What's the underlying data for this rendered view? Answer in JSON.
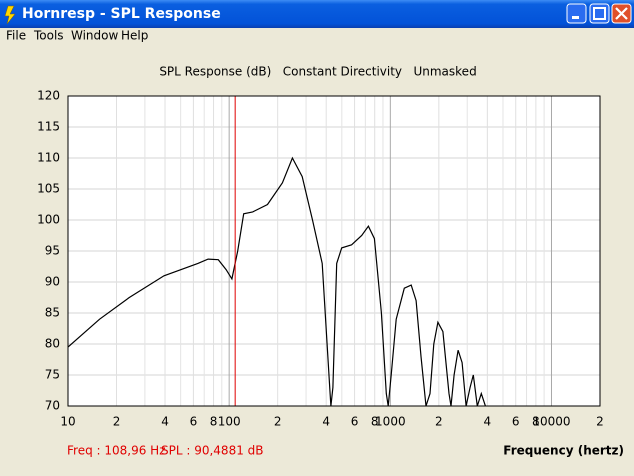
{
  "window": {
    "title": "Hornresp - SPL Response"
  },
  "menu": [
    "File",
    "Tools",
    "Window",
    "Help"
  ],
  "chart_data": {
    "type": "line",
    "title": "SPL Response (dB)   Constant Directivity   Unmasked",
    "x_label": "Frequency (hertz)",
    "log_x": true,
    "grid": true,
    "xlim": [
      10,
      20000
    ],
    "ylim": [
      70,
      120
    ],
    "xticks": [
      10,
      {
        "value": 20,
        "label": "2"
      },
      {
        "value": 40,
        "label": "4"
      },
      {
        "value": 60,
        "label": "6"
      },
      {
        "value": 80,
        "label": "8"
      },
      100,
      {
        "value": 200,
        "label": "2"
      },
      {
        "value": 400,
        "label": "4"
      },
      {
        "value": 600,
        "label": "6"
      },
      {
        "value": 800,
        "label": "8"
      },
      1000,
      {
        "value": 2000,
        "label": "2"
      },
      {
        "value": 4000,
        "label": "4"
      },
      {
        "value": 6000,
        "label": "6"
      },
      {
        "value": 8000,
        "label": "8"
      },
      10000,
      {
        "value": 20000,
        "label": "2"
      }
    ],
    "x_minor_grid": [
      30,
      50,
      70,
      90,
      300,
      500,
      700,
      900,
      3000,
      5000,
      7000,
      9000
    ],
    "yticks": [
      70,
      75,
      80,
      85,
      90,
      95,
      100,
      105,
      110,
      115,
      120
    ],
    "series": [
      {
        "color": "#000000",
        "x": [
          10,
          15.7,
          24,
          39.4,
          64,
          74,
          85.6,
          95.7,
          104,
          113,
          123,
          140,
          173,
          214,
          247,
          284,
          329,
          378,
          423,
          428,
          440,
          465,
          499,
          575,
          664,
          731,
          796,
          880,
          944,
          970,
          1013,
          1088,
          1221,
          1347,
          1445,
          1550,
          1666,
          1763,
          1862,
          1972,
          2120,
          2311,
          2380,
          2486,
          2633,
          2788,
          2954,
          3128,
          3273,
          3465,
          3670,
          3890
        ],
        "values": [
          79.5,
          84,
          87.5,
          91,
          93,
          93.7,
          93.6,
          92,
          90.5,
          95,
          101,
          101.3,
          102.5,
          106,
          110,
          107,
          100,
          93,
          72,
          70,
          73,
          93,
          95.5,
          96,
          97.5,
          99,
          97,
          85,
          72,
          70,
          75,
          84,
          89,
          89.5,
          87,
          78,
          70,
          72,
          80,
          83.5,
          82,
          72,
          70,
          75,
          79,
          77,
          70,
          73,
          75,
          70,
          72,
          70
        ]
      }
    ],
    "cursor": {
      "x": 108.96,
      "color": "#e00000",
      "freq_label": "Freq : 108,96 Hz",
      "spl_label": "SPL : 90,4881 dB"
    }
  }
}
